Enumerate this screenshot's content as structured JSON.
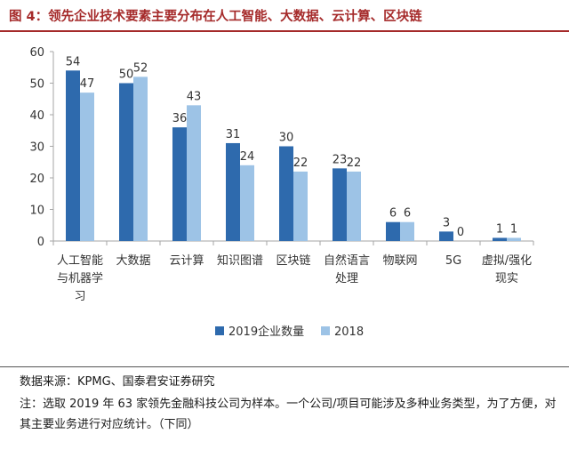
{
  "title": "图 4：领先企业技术要素主要分布在人工智能、大数据、云计算、区块链",
  "source": "数据来源：KPMG、国泰君安证券研究",
  "note": "注：选取 2019 年 63 家领先金融科技公司为样本。一个公司/项目可能涉及多种业务类型，为了方便，对其主要业务进行对应统计。（下同）",
  "colors": {
    "title": "#a52a2a",
    "series_2019": "#2e6aad",
    "series_2018": "#9dc3e6",
    "axis": "#a6a6a6"
  },
  "chart_data": {
    "type": "bar",
    "categories": [
      [
        "人工智能",
        "与机器学",
        "习"
      ],
      [
        "大数据"
      ],
      [
        "云计算"
      ],
      [
        "知识图谱"
      ],
      [
        "区块链"
      ],
      [
        "自然语言",
        "处理"
      ],
      [
        "物联网"
      ],
      [
        "5G"
      ],
      [
        "虚拟/强化",
        "现实"
      ]
    ],
    "series": [
      {
        "name": "2019企业数量",
        "values": [
          54,
          50,
          36,
          31,
          30,
          23,
          6,
          3,
          1
        ]
      },
      {
        "name": "2018",
        "values": [
          47,
          52,
          43,
          24,
          22,
          22,
          6,
          0,
          1
        ]
      }
    ],
    "ylim": [
      0,
      60
    ],
    "yticks": [
      0,
      10,
      20,
      30,
      40,
      50,
      60
    ],
    "grid": false,
    "legend_position": "bottom-center"
  }
}
